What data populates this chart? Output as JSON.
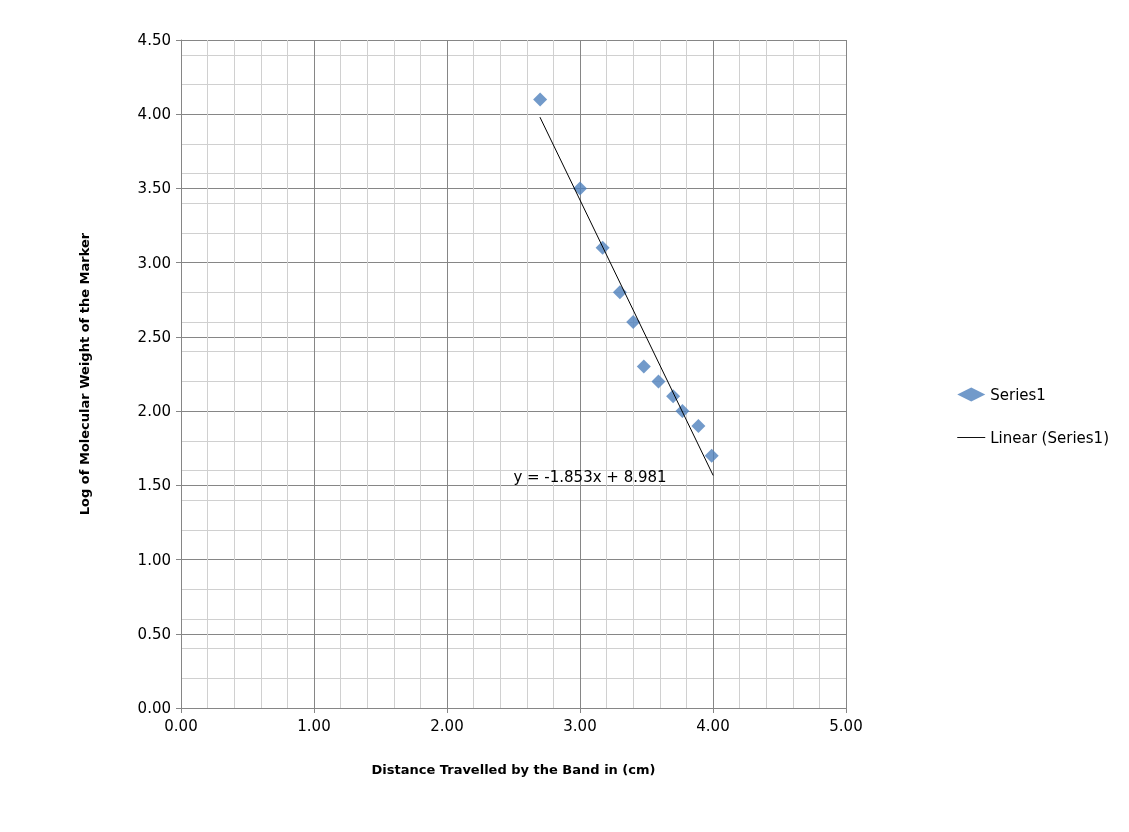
{
  "chart_data": {
    "type": "scatter",
    "xlabel": "Distance Travelled by the Band in (cm)",
    "ylabel": "Log of Molecular Weight of the Marker",
    "series": [
      {
        "name": "Series1",
        "color": "#4f81bd",
        "marker": "diamond",
        "x": [
          2.7,
          3.0,
          3.17,
          3.3,
          3.4,
          3.48,
          3.59,
          3.7,
          3.77,
          3.89,
          3.99
        ],
        "values": [
          4.1,
          3.5,
          3.1,
          2.8,
          2.6,
          2.3,
          2.2,
          2.1,
          2.0,
          1.9,
          1.7
        ]
      },
      {
        "name": "Linear (Series1)",
        "type": "line",
        "color": "#000000",
        "marker": "none",
        "line_style": "solid",
        "x": [
          2.7,
          4.0
        ],
        "values": [
          3.978,
          1.569
        ]
      }
    ],
    "xlim": [
      0,
      5
    ],
    "ylim": [
      0,
      4.5
    ],
    "xticks": [
      {
        "value": 0,
        "label": "0.00"
      },
      {
        "value": 1,
        "label": "1.00"
      },
      {
        "value": 2,
        "label": "2.00"
      },
      {
        "value": 3,
        "label": "3.00"
      },
      {
        "value": 4,
        "label": "4.00"
      },
      {
        "value": 5,
        "label": "5.00"
      }
    ],
    "yticks": [
      {
        "value": 0,
        "label": "0.00"
      },
      {
        "value": 0.5,
        "label": "0.50"
      },
      {
        "value": 1,
        "label": "1.00"
      },
      {
        "value": 1.5,
        "label": "1.50"
      },
      {
        "value": 2,
        "label": "2.00"
      },
      {
        "value": 2.5,
        "label": "2.50"
      },
      {
        "value": 3,
        "label": "3.00"
      },
      {
        "value": 3.5,
        "label": "3.50"
      },
      {
        "value": 4,
        "label": "4.00"
      },
      {
        "value": 4.5,
        "label": "4.50"
      }
    ],
    "annotations": [
      "y = -1.853x + 8.981"
    ],
    "grid": true,
    "legend": "right"
  }
}
